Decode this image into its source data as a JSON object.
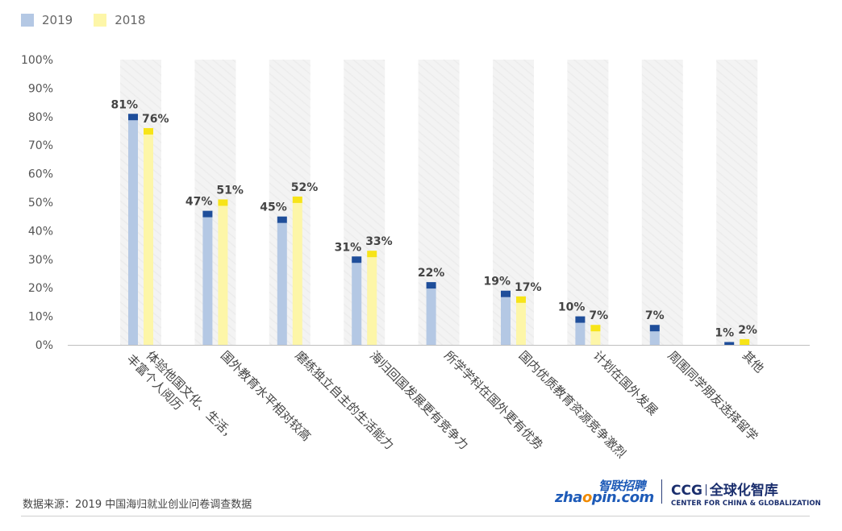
{
  "legend": [
    {
      "label": "2019",
      "color": "#b4c8e4"
    },
    {
      "label": "2018",
      "color": "#fdf6a8"
    }
  ],
  "source": "数据来源：2019 中国海归就业创业问卷调查数据",
  "logos": {
    "zhaopin_cn": "智联招聘",
    "zhaopin_en_a": "zha",
    "zhaopin_en_dot": "o",
    "zhaopin_en_b": "pin.com",
    "ccg_abbr": "CCG",
    "ccg_cn": "全球化智库",
    "ccg_en": "CENTER FOR CHINA & GLOBALIZATION"
  },
  "colors": {
    "s2019_fill": "#b4c8e4",
    "s2019_cap": "#1f4e9a",
    "s2018_fill": "#fdf6a8",
    "s2018_cap": "#f7e418",
    "bg_band": "#f3f3f3",
    "axis_text": "#555555",
    "label_text": "#444444"
  },
  "chart_data": {
    "type": "bar",
    "title": "",
    "xlabel": "",
    "ylabel": "",
    "ylim": [
      0,
      100
    ],
    "yticks": [
      "0%",
      "10%",
      "20%",
      "30%",
      "40%",
      "50%",
      "60%",
      "70%",
      "80%",
      "90%",
      "100%"
    ],
    "categories": [
      [
        "体验他国文化、生活，",
        "丰富个人阅历"
      ],
      [
        "国外教育水平相对较高"
      ],
      [
        "磨练独立自主的生活能力"
      ],
      [
        "海归回国发展更有竞争力"
      ],
      [
        "所学学科在国外更有优势"
      ],
      [
        "国内优质教育资源竞争激烈"
      ],
      [
        "计划在国外发展"
      ],
      [
        "周围同学朋友选择留学"
      ],
      [
        "其他"
      ]
    ],
    "series": [
      {
        "name": "2019",
        "values": [
          81,
          47,
          45,
          31,
          22,
          19,
          10,
          7,
          1
        ],
        "labels": [
          "81%",
          "47%",
          "45%",
          "31%",
          "22%",
          "19%",
          "10%",
          "7%",
          "1%"
        ]
      },
      {
        "name": "2018",
        "values": [
          76,
          51,
          52,
          33,
          null,
          17,
          7,
          null,
          2
        ],
        "labels": [
          "76%",
          "51%",
          "52%",
          "33%",
          "",
          "17%",
          "7%",
          "",
          "2%"
        ]
      }
    ]
  }
}
